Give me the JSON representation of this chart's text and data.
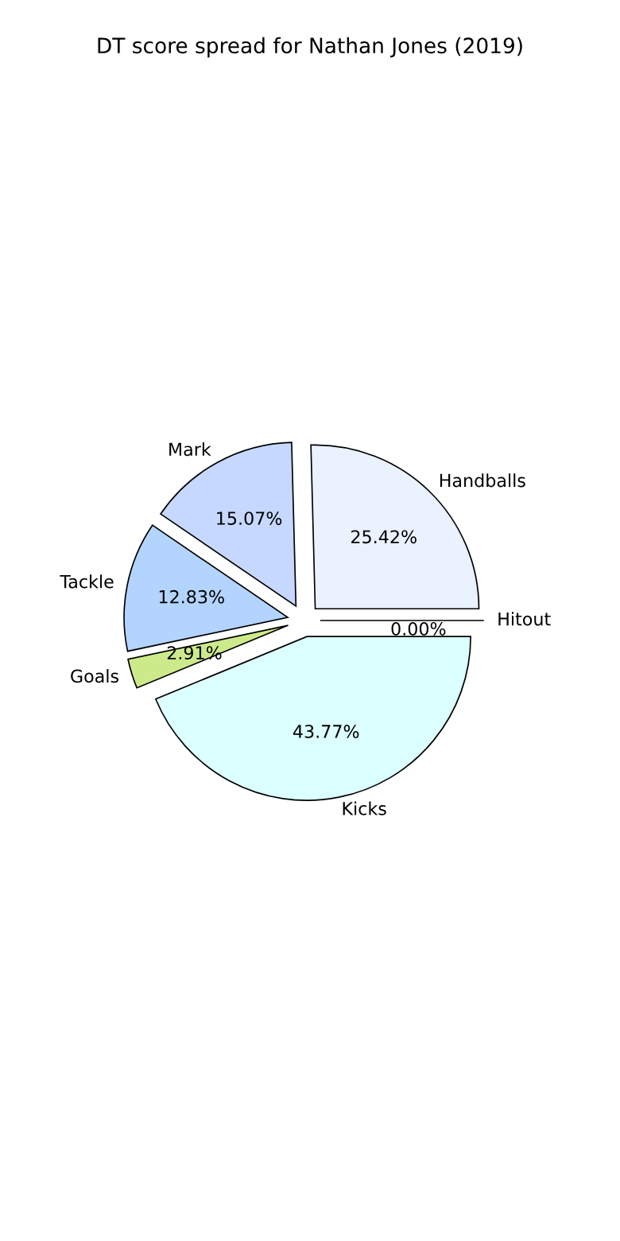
{
  "chart_data": {
    "type": "pie",
    "title": "DT score spread for Nathan Jones (2019)",
    "categories": [
      "Handballs",
      "Mark",
      "Tackle",
      "Goals",
      "Kicks",
      "Hitout"
    ],
    "values": [
      25.42,
      15.07,
      12.83,
      2.91,
      43.77,
      0.0
    ],
    "value_labels": [
      "25.42%",
      "15.07%",
      "12.83%",
      "2.91%",
      "43.77%",
      "0.00%"
    ],
    "colors": [
      "#eaf1ff",
      "#c6d8ff",
      "#b3d4ff",
      "#cdea8a",
      "#dcffff",
      "#f0f0f0"
    ],
    "legend": false
  }
}
